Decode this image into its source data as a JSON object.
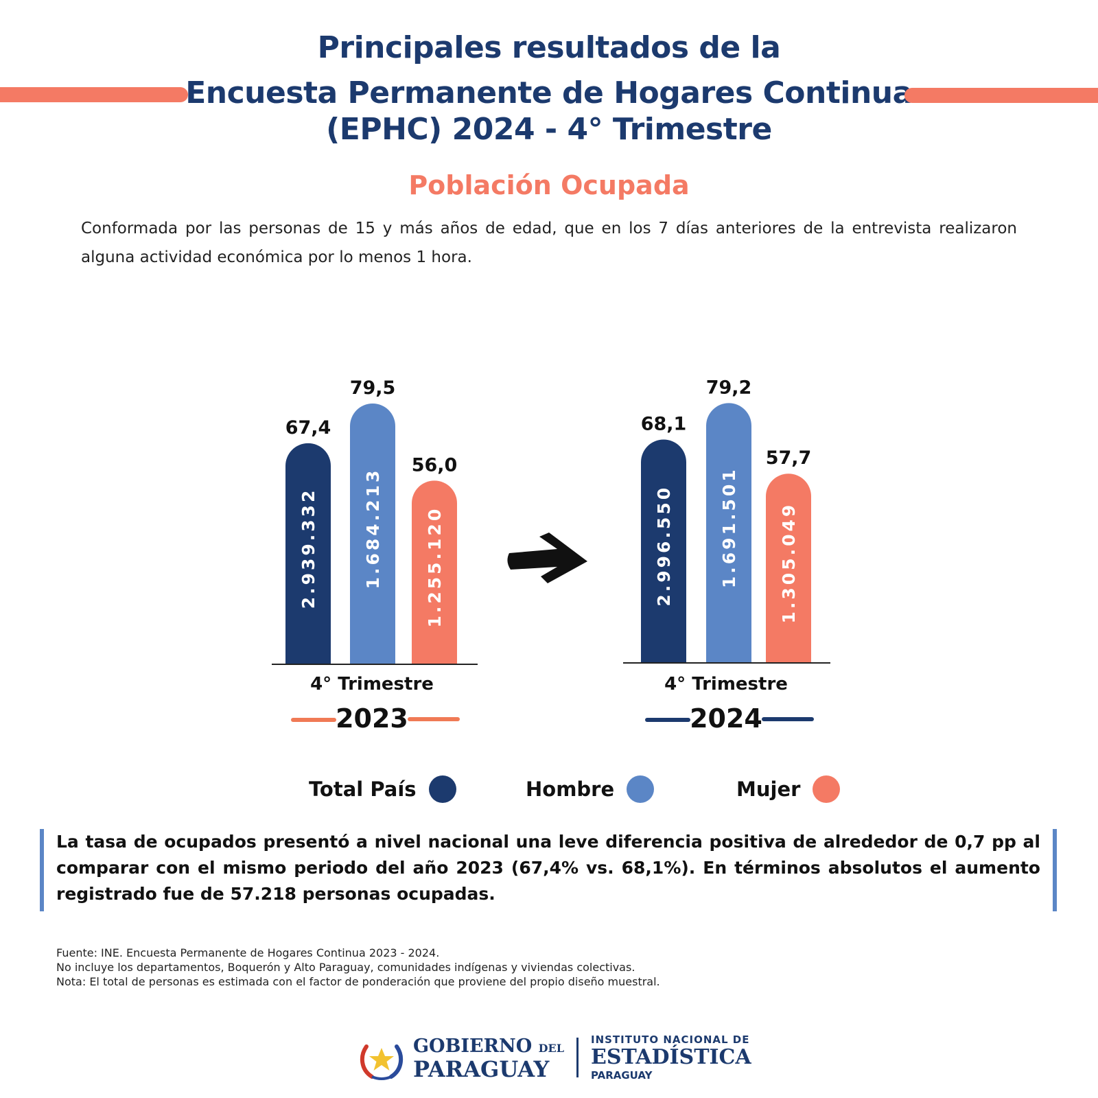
{
  "header": {
    "title_line1": "Principales resultados de la",
    "title_line2": "Encuesta Permanente de Hogares Continua",
    "title_line3": "(EPHC) 2024 - 4° Trimestre",
    "subtitle": "Población Ocupada",
    "definition": "Conformada por las personas de 15 y más años de edad, que en los 7 días anteriores de la entrevista realizaron alguna actividad económica por lo menos 1 hora."
  },
  "colors": {
    "navy": "#1c3a6e",
    "blue": "#5b86c6",
    "salmon": "#f47a64",
    "orange_accent": "#f07a55"
  },
  "chart_data": {
    "type": "bar",
    "value_unit": "%",
    "series": [
      {
        "name": "Total País",
        "color": "#1c3a6e"
      },
      {
        "name": "Hombre",
        "color": "#5b86c6"
      },
      {
        "name": "Mujer",
        "color": "#f47a64"
      }
    ],
    "groups": [
      {
        "category": "4° Trimestre",
        "year": "2023",
        "rates": [
          67.4,
          79.5,
          56.0
        ],
        "rate_labels": [
          "67,4",
          "79,5",
          "56,0"
        ],
        "persons": [
          "2.939.332",
          "1.684.213",
          "1.255.120"
        ]
      },
      {
        "category": "4° Trimestre",
        "year": "2024",
        "rates": [
          68.1,
          79.2,
          57.7
        ],
        "rate_labels": [
          "68,1",
          "79,2",
          "57,7"
        ],
        "persons": [
          "2.996.550",
          "1.691.501",
          "1.305.049"
        ]
      }
    ],
    "arrow": "right-arrow"
  },
  "legend": [
    {
      "label": "Total País",
      "color": "#1c3a6e"
    },
    {
      "label": "Hombre",
      "color": "#5b86c6"
    },
    {
      "label": "Mujer",
      "color": "#f47a64"
    }
  ],
  "summary": "La tasa de ocupados  presentó a nivel nacional una leve diferencia positiva de alrededor de 0,7 pp al comparar con el mismo periodo del año 2023 (67,4% vs. 68,1%). En términos absolutos el aumento registrado fue de 57.218 personas ocupadas.",
  "footnotes": [
    "Fuente: INE. Encuesta Permanente de Hogares Continua 2023 - 2024.",
    "No incluye los departamentos, Boquerón y Alto Paraguay, comunidades indígenas y viviendas colectivas.",
    "Nota: El total de personas es estimada con el factor de ponderación que proviene del propio diseño muestral."
  ],
  "footer": {
    "gov_line1": "GOBIERNO",
    "gov_del": "DEL",
    "gov_line2": "PARAGUAY",
    "ine_line1": "INSTITUTO NACIONAL DE",
    "ine_line2": "ESTADÍSTICA",
    "ine_line3": "PARAGUAY",
    "emblem_icon": "star-laurel-emblem-icon"
  }
}
